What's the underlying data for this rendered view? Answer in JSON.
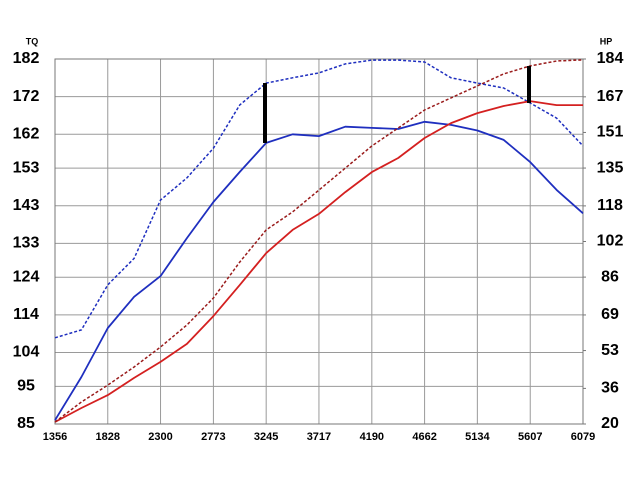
{
  "chart_data": {
    "type": "line",
    "y_label": "TQ",
    "y2_label": "HP",
    "x": [
      1356,
      1592,
      1828,
      2064,
      2300,
      2536,
      2773,
      3009,
      3245,
      3481,
      3717,
      3953,
      4190,
      4426,
      4662,
      4898,
      5134,
      5370,
      5607,
      5843,
      6079
    ],
    "xlim": [
      1356,
      6079
    ],
    "xticks": [
      1356,
      1828,
      2300,
      2773,
      3245,
      3717,
      4190,
      4662,
      5134,
      5607,
      6079
    ],
    "ylim": [
      85,
      182
    ],
    "yticks": [
      85,
      95,
      104,
      114,
      124,
      133,
      143,
      153,
      162,
      172,
      182
    ],
    "y2lim": [
      20,
      184
    ],
    "y2ticks": [
      20,
      36,
      53,
      69,
      86,
      102,
      118,
      135,
      151,
      167,
      184
    ],
    "grid": true,
    "series": [
      {
        "color": "#1f2fbf",
        "dashed": false,
        "axis": "y",
        "values": [
          86,
          97.5,
          110.5,
          118.8,
          124.3,
          134.4,
          144,
          152,
          159.7,
          162,
          161.5,
          164,
          163.7,
          163.4,
          165.3,
          164.5,
          163,
          160.5,
          154.6,
          147.2,
          141
        ]
      },
      {
        "color": "#1f2fbf",
        "dashed": true,
        "axis": "y",
        "values": [
          107.9,
          110,
          122,
          129,
          144.5,
          150.4,
          158.3,
          169.8,
          175.6,
          177,
          178.3,
          180.7,
          181.7,
          181.7,
          181.2,
          177,
          175.6,
          174.3,
          170.3,
          166.3,
          158.9
        ]
      },
      {
        "color": "#d42020",
        "dashed": false,
        "axis": "y2",
        "values": [
          20.9,
          27.2,
          33,
          40.7,
          47.9,
          56,
          68.5,
          82.5,
          96.8,
          107.2,
          114.4,
          124.2,
          133.2,
          139.5,
          148.5,
          155.2,
          159.7,
          162.9,
          165.1,
          163.3,
          163.3
        ]
      },
      {
        "color": "#9a1c1c",
        "dashed": true,
        "axis": "y2",
        "values": [
          20.9,
          29.9,
          37.5,
          45.6,
          54.6,
          64.5,
          76.6,
          92.8,
          107.2,
          115.3,
          125.1,
          135,
          144.9,
          153,
          161.1,
          166.5,
          171.9,
          177.3,
          180.9,
          183.1,
          183.6
        ]
      }
    ]
  }
}
